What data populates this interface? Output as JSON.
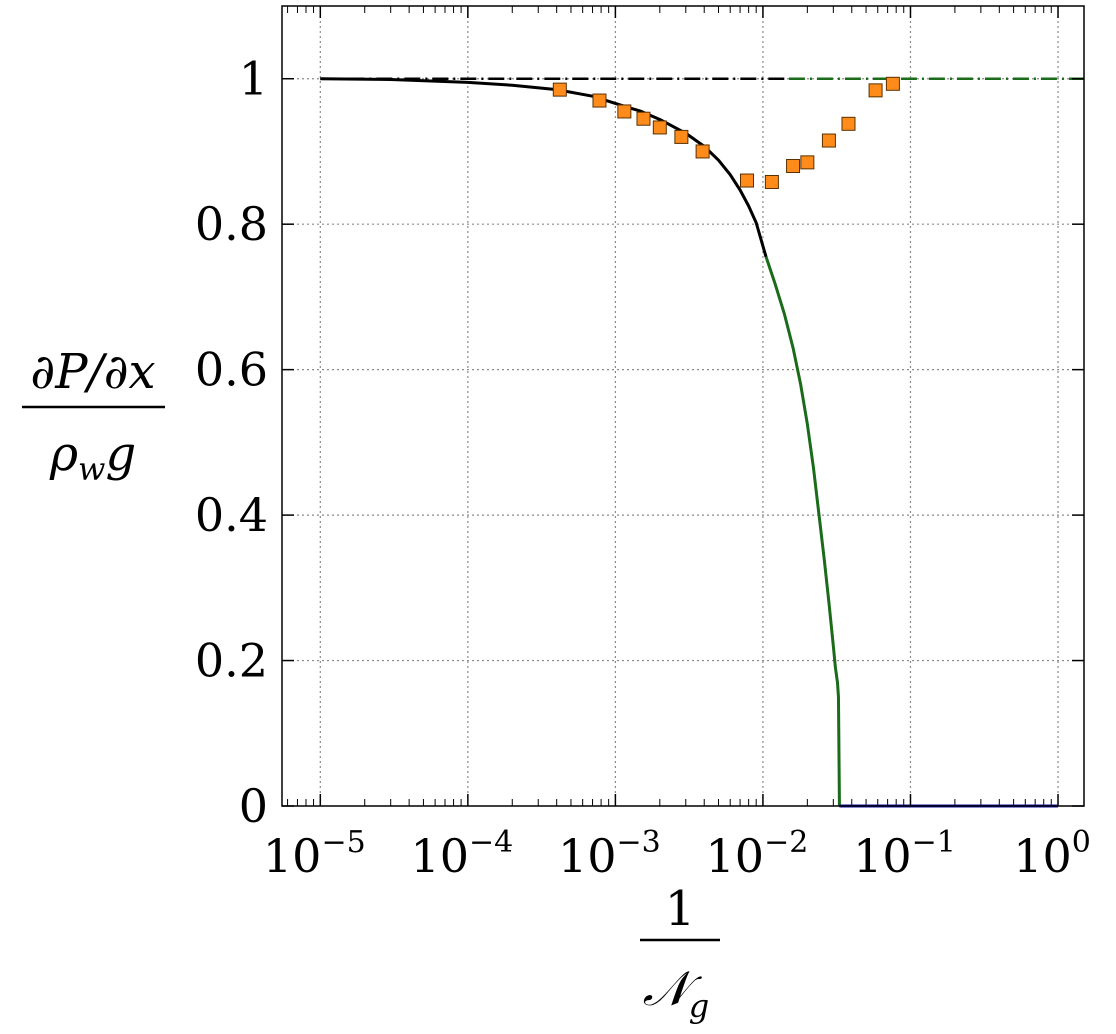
{
  "chart_data": {
    "type": "line",
    "xscale": "log",
    "xlim": [
      5.5e-06,
      1.5
    ],
    "ylim": [
      0,
      1.1
    ],
    "grid": true,
    "xlabel": {
      "numerator": "1",
      "denominator": "𝒩",
      "denominator_sub": "g"
    },
    "ylabel": {
      "numerator": "∂P/∂x",
      "denominator_main": "ρ",
      "denominator_sub": "w",
      "denominator_tail": "g"
    },
    "x_tick_values": [
      1e-05,
      0.0001,
      0.001,
      0.01,
      0.1,
      1
    ],
    "x_tick_labels": [
      {
        "base": "10",
        "exp": "−5"
      },
      {
        "base": "10",
        "exp": "−4"
      },
      {
        "base": "10",
        "exp": "−3"
      },
      {
        "base": "10",
        "exp": "−2"
      },
      {
        "base": "10",
        "exp": "−1"
      },
      {
        "base": "10",
        "exp": "0"
      }
    ],
    "y_tick_values": [
      0,
      0.2,
      0.4,
      0.6,
      0.8,
      1
    ],
    "y_tick_labels": [
      "0",
      "0.2",
      "0.4",
      "0.6",
      "0.8",
      "1"
    ],
    "series": [
      {
        "color": "#000000",
        "style": "dashed",
        "x": [
          1e-05,
          0.015
        ],
        "y": [
          1,
          1
        ]
      },
      {
        "color": "#1a6b1a",
        "style": "dashed",
        "x": [
          0.015,
          1.5
        ],
        "y": [
          1,
          1
        ]
      },
      {
        "color": "#000000",
        "style": "solid",
        "x": [
          1e-05,
          3e-05,
          0.0001,
          0.0002,
          0.0004,
          0.0007,
          0.001,
          0.0015,
          0.002,
          0.003,
          0.004,
          0.005,
          0.006,
          0.007,
          0.008,
          0.009,
          0.0105
        ],
        "y": [
          1,
          0.999,
          0.995,
          0.991,
          0.985,
          0.976,
          0.966,
          0.955,
          0.944,
          0.925,
          0.907,
          0.888,
          0.868,
          0.847,
          0.825,
          0.802,
          0.755
        ]
      },
      {
        "color": "#1a6b1a",
        "style": "solid",
        "x": [
          0.0105,
          0.012,
          0.014,
          0.016,
          0.018,
          0.02,
          0.022,
          0.024,
          0.026,
          0.028,
          0.03,
          0.031,
          0.032,
          0.0325,
          0.033
        ],
        "y": [
          0.755,
          0.72,
          0.676,
          0.63,
          0.58,
          0.525,
          0.465,
          0.4,
          0.34,
          0.28,
          0.22,
          0.19,
          0.17,
          0.15,
          0
        ]
      },
      {
        "color": "#1111aa",
        "style": "solid",
        "x": [
          0.033,
          1
        ],
        "y": [
          0,
          0
        ]
      },
      {
        "color": "#ff8c1a",
        "style": "markers",
        "marker": "square",
        "x": [
          0.00042,
          0.00078,
          0.00115,
          0.00155,
          0.002,
          0.0028,
          0.0039,
          0.0078,
          0.0115,
          0.016,
          0.02,
          0.028,
          0.038,
          0.058,
          0.076
        ],
        "y": [
          0.985,
          0.97,
          0.955,
          0.945,
          0.933,
          0.92,
          0.9,
          0.86,
          0.858,
          0.88,
          0.885,
          0.915,
          0.938,
          0.984,
          0.993
        ]
      }
    ]
  }
}
